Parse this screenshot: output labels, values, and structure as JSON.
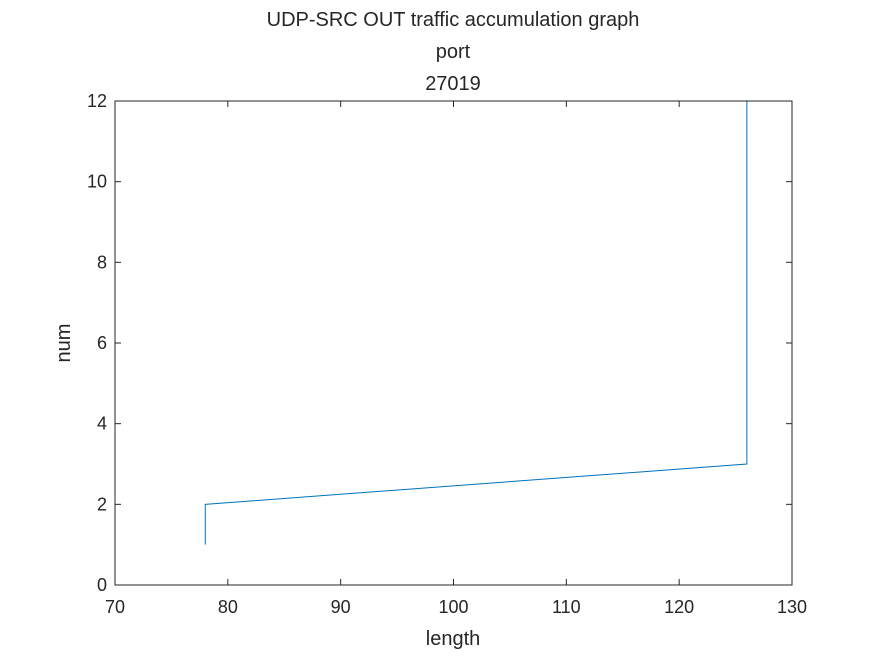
{
  "chart_data": {
    "type": "line",
    "title_lines": [
      "UDP-SRC OUT traffic accumulation graph",
      "port",
      "27019"
    ],
    "xlabel": "length",
    "ylabel": "num",
    "xlim": [
      70,
      130
    ],
    "ylim": [
      0,
      12
    ],
    "xticks": [
      70,
      80,
      90,
      100,
      110,
      120,
      130
    ],
    "yticks": [
      0,
      2,
      4,
      6,
      8,
      10,
      12
    ],
    "grid": false,
    "series": [
      {
        "color": "#0072BD",
        "points": [
          [
            78,
            1
          ],
          [
            78,
            2
          ],
          [
            126,
            3
          ],
          [
            126,
            12
          ]
        ]
      }
    ]
  }
}
